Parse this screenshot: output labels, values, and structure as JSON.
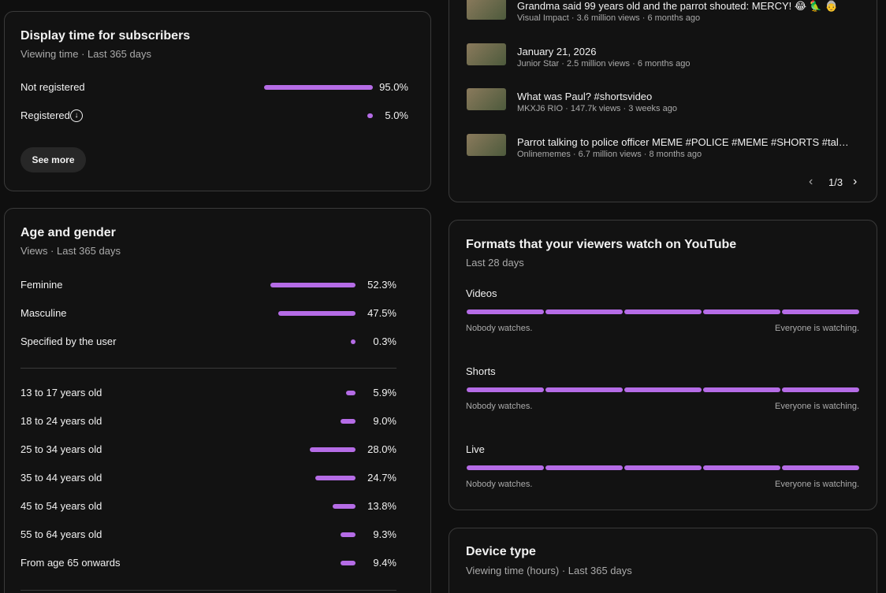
{
  "subscribers_card": {
    "title": "Display time for subscribers",
    "subtitle": "Viewing time · Last 365 days",
    "rows": [
      {
        "label": "Not registered",
        "value": 95.0,
        "value_label": "95.0%"
      },
      {
        "label": "Registered",
        "value": 5.0,
        "value_label": "5.0%"
      }
    ],
    "button": "See more"
  },
  "age_gender_card": {
    "title": "Age and gender",
    "subtitle": "Views · Last 365 days",
    "gender_rows": [
      {
        "label": "Feminine",
        "value": 52.3,
        "value_label": "52.3%"
      },
      {
        "label": "Masculine",
        "value": 47.5,
        "value_label": "47.5%"
      },
      {
        "label": "Specified by the user",
        "value": 0.3,
        "value_label": "0.3%"
      }
    ],
    "age_rows": [
      {
        "label": "13 to 17 years old",
        "value": 5.9,
        "value_label": "5.9%"
      },
      {
        "label": "18 to 24 years old",
        "value": 9.0,
        "value_label": "9.0%"
      },
      {
        "label": "25 to 34 years old",
        "value": 28.0,
        "value_label": "28.0%"
      },
      {
        "label": "35 to 44 years old",
        "value": 24.7,
        "value_label": "24.7%"
      },
      {
        "label": "45 to 54 years old",
        "value": 13.8,
        "value_label": "13.8%"
      },
      {
        "label": "55 to 64 years old",
        "value": 9.3,
        "value_label": "9.3%"
      },
      {
        "label": "From age 65 onwards",
        "value": 9.4,
        "value_label": "9.4%"
      }
    ]
  },
  "videos_card": {
    "videos": [
      {
        "title": "Grandma said 99 years old and the parrot shouted: MERCY! 😂 🦜 👵",
        "meta": "Visual Impact · 3.6 million views · 6 months ago"
      },
      {
        "title": "January 21, 2026",
        "meta": "Junior Star · 2.5 million views · 6 months ago"
      },
      {
        "title": "What was Paul? #shortsvideo",
        "meta": "MKXJ6 RIO · 147.7k views · 3 weeks ago"
      },
      {
        "title": "Parrot talking to police officer MEME #POLICE #MEME #SHORTS #tal…",
        "meta": "Onlinememes · 6.7 million views · 8 months ago"
      }
    ],
    "pager": "1/3"
  },
  "formats_card": {
    "title": "Formats that your viewers watch on YouTube",
    "subtitle": "Last 28 days",
    "formats": [
      {
        "name": "Videos",
        "min_label": "Nobody watches.",
        "max_label": "Everyone is watching."
      },
      {
        "name": "Shorts",
        "min_label": "Nobody watches.",
        "max_label": "Everyone is watching."
      },
      {
        "name": "Live",
        "min_label": "Nobody watches.",
        "max_label": "Everyone is watching."
      }
    ]
  },
  "device_card": {
    "title": "Device type",
    "subtitle": "Viewing time (hours) · Last 365 days"
  }
}
